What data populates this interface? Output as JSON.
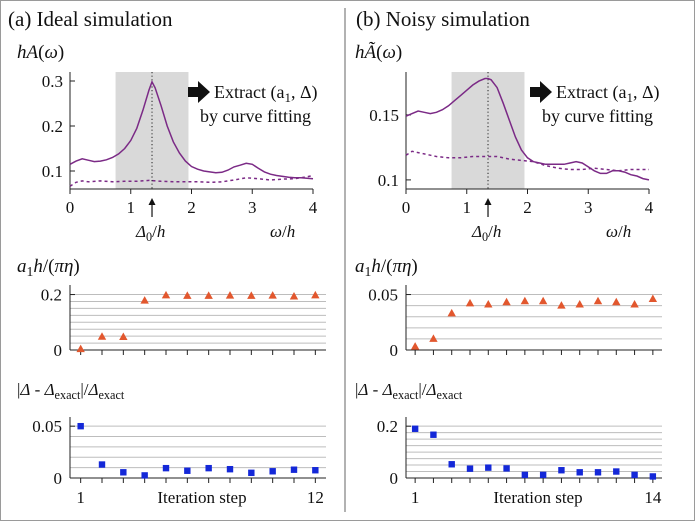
{
  "colors": {
    "curve": "#7b2a86",
    "triangle": "#e2572e",
    "square": "#1428d8",
    "highlight": "#d9d9d9",
    "grid": "#bdbdbd",
    "divider": "#888888"
  },
  "annotation": {
    "extract_line1": "Extract (a",
    "extract_sub": "1",
    "extract_line1_end": ", Δ)",
    "extract_line2": "by curve fitting"
  },
  "chart_data": [
    {
      "id": "a-spectrum",
      "panel_title": "(a) Ideal simulation",
      "type": "line",
      "ylabel": "hA(ω)",
      "xlabel": "ω/h",
      "xtick_label": "Δ0/h",
      "xlim": [
        0,
        4
      ],
      "ylim": [
        0.06,
        0.32
      ],
      "xticks": [
        0,
        1,
        2,
        3,
        4
      ],
      "yticks": [
        0.1,
        0.2,
        0.3
      ],
      "ytick_labels": [
        "0.1",
        "0.2",
        "0.3"
      ],
      "highlight_range": [
        0.75,
        1.95
      ],
      "peak_x": 1.35,
      "series": [
        {
          "style": "solid",
          "x": [
            0,
            0.1,
            0.2,
            0.3,
            0.4,
            0.5,
            0.6,
            0.7,
            0.8,
            0.9,
            1.0,
            1.1,
            1.2,
            1.3,
            1.35,
            1.4,
            1.5,
            1.6,
            1.7,
            1.8,
            1.9,
            2.0,
            2.1,
            2.2,
            2.3,
            2.4,
            2.5,
            2.6,
            2.7,
            2.8,
            2.9,
            3.0,
            3.1,
            3.2,
            3.3,
            3.4,
            3.5,
            3.6,
            3.7,
            3.8,
            3.9,
            4.0
          ],
          "y": [
            0.115,
            0.122,
            0.127,
            0.124,
            0.121,
            0.122,
            0.125,
            0.13,
            0.138,
            0.15,
            0.168,
            0.195,
            0.235,
            0.28,
            0.298,
            0.285,
            0.245,
            0.2,
            0.165,
            0.14,
            0.122,
            0.11,
            0.104,
            0.1,
            0.098,
            0.096,
            0.097,
            0.102,
            0.109,
            0.113,
            0.117,
            0.115,
            0.106,
            0.098,
            0.093,
            0.09,
            0.088,
            0.086,
            0.085,
            0.085,
            0.084,
            0.083
          ]
        },
        {
          "style": "dashed",
          "x": [
            0,
            0.1,
            0.2,
            0.3,
            0.5,
            0.7,
            0.9,
            1.1,
            1.3,
            1.5,
            1.7,
            1.9,
            2.1,
            2.3,
            2.5,
            2.7,
            2.9,
            3.1,
            3.3,
            3.5,
            3.7,
            3.9,
            4.0
          ],
          "y": [
            0.066,
            0.075,
            0.078,
            0.076,
            0.078,
            0.076,
            0.077,
            0.077,
            0.079,
            0.077,
            0.076,
            0.076,
            0.076,
            0.075,
            0.076,
            0.08,
            0.085,
            0.083,
            0.08,
            0.082,
            0.083,
            0.087,
            0.09
          ]
        }
      ]
    },
    {
      "id": "a-a1",
      "type": "scatter",
      "ylabel": "a1h/(πη)",
      "ylim": [
        0,
        0.22
      ],
      "yticks": [
        0,
        0.2
      ],
      "ytick_labels": [
        "0",
        "0.2"
      ],
      "gridlines": [
        0.025,
        0.05,
        0.075,
        0.1,
        0.125,
        0.15,
        0.175,
        0.2
      ],
      "xlim": [
        0.5,
        12.5
      ],
      "marker": "triangle",
      "x": [
        1,
        2,
        3,
        4,
        5,
        6,
        7,
        8,
        9,
        10,
        11,
        12
      ],
      "y": [
        0.003,
        0.048,
        0.047,
        0.178,
        0.197,
        0.195,
        0.195,
        0.196,
        0.195,
        0.196,
        0.193,
        0.197
      ]
    },
    {
      "id": "a-delta",
      "type": "scatter",
      "ylabel": "|Δ - Δexact|/Δexact",
      "xlabel": "Iteration step",
      "ylim": [
        0,
        0.055
      ],
      "yticks": [
        0,
        0.05
      ],
      "ytick_labels": [
        "0",
        "0.05"
      ],
      "gridlines": [
        0.01,
        0.02,
        0.03,
        0.04,
        0.05
      ],
      "xlim": [
        0.5,
        12.5
      ],
      "xtick_values": [
        1,
        12
      ],
      "xtick_labels": [
        "1",
        "12"
      ],
      "marker": "square",
      "x": [
        1,
        2,
        3,
        4,
        5,
        6,
        7,
        8,
        9,
        10,
        11,
        12
      ],
      "y": [
        0.05,
        0.013,
        0.0055,
        0.0025,
        0.0095,
        0.007,
        0.0095,
        0.0085,
        0.005,
        0.0065,
        0.008,
        0.0075
      ]
    },
    {
      "id": "b-spectrum",
      "panel_title": "(b) Noisy simulation",
      "type": "line",
      "ylabel": "hÃ(ω)",
      "xlabel": "ω/h",
      "xtick_label": "Δ0/h",
      "xlim": [
        0,
        4
      ],
      "ylim": [
        0.093,
        0.183
      ],
      "xticks": [
        0,
        1,
        2,
        3,
        4
      ],
      "yticks": [
        0.1,
        0.15
      ],
      "ytick_labels": [
        "0.1",
        "0.15"
      ],
      "highlight_range": [
        0.75,
        1.95
      ],
      "peak_x": 1.35,
      "series": [
        {
          "style": "solid",
          "x": [
            0,
            0.1,
            0.2,
            0.3,
            0.4,
            0.5,
            0.6,
            0.7,
            0.8,
            0.9,
            1.0,
            1.1,
            1.2,
            1.3,
            1.35,
            1.4,
            1.5,
            1.6,
            1.7,
            1.8,
            1.9,
            2.0,
            2.1,
            2.2,
            2.3,
            2.4,
            2.5,
            2.6,
            2.7,
            2.8,
            2.9,
            3.0,
            3.1,
            3.2,
            3.3,
            3.4,
            3.5,
            3.6,
            3.7,
            3.8,
            3.9,
            4.0
          ],
          "y": [
            0.149,
            0.151,
            0.153,
            0.152,
            0.151,
            0.152,
            0.154,
            0.157,
            0.161,
            0.165,
            0.169,
            0.173,
            0.176,
            0.178,
            0.178,
            0.177,
            0.171,
            0.159,
            0.146,
            0.133,
            0.123,
            0.117,
            0.114,
            0.113,
            0.112,
            0.112,
            0.112,
            0.112,
            0.113,
            0.114,
            0.113,
            0.11,
            0.107,
            0.105,
            0.105,
            0.107,
            0.107,
            0.106,
            0.104,
            0.103,
            0.101,
            0.1
          ]
        },
        {
          "style": "dashed",
          "x": [
            0,
            0.1,
            0.2,
            0.3,
            0.5,
            0.7,
            0.9,
            1.1,
            1.3,
            1.5,
            1.7,
            1.9,
            2.1,
            2.3,
            2.5,
            2.7,
            2.9,
            3.1,
            3.3,
            3.5,
            3.7,
            3.9,
            4.0
          ],
          "y": [
            0.119,
            0.122,
            0.121,
            0.12,
            0.118,
            0.117,
            0.117,
            0.118,
            0.118,
            0.118,
            0.116,
            0.115,
            0.114,
            0.111,
            0.109,
            0.108,
            0.108,
            0.109,
            0.108,
            0.107,
            0.108,
            0.108,
            0.108
          ]
        }
      ]
    },
    {
      "id": "b-a1",
      "type": "scatter",
      "ylabel": "a1h/(πη)",
      "ylim": [
        0,
        0.055
      ],
      "yticks": [
        0,
        0.05
      ],
      "ytick_labels": [
        "0",
        "0.05"
      ],
      "gridlines": [
        0.01,
        0.02,
        0.03,
        0.04,
        0.05
      ],
      "xlim": [
        0.5,
        14.5
      ],
      "marker": "triangle",
      "x": [
        1,
        2,
        3,
        4,
        5,
        6,
        7,
        8,
        9,
        10,
        11,
        12,
        13,
        14
      ],
      "y": [
        0.003,
        0.01,
        0.033,
        0.042,
        0.041,
        0.043,
        0.044,
        0.044,
        0.04,
        0.041,
        0.044,
        0.043,
        0.041,
        0.046
      ]
    },
    {
      "id": "b-delta",
      "type": "scatter",
      "ylabel": "|Δ - Δexact|/Δexact",
      "xlabel": "Iteration step",
      "ylim": [
        0,
        0.22
      ],
      "yticks": [
        0,
        0.2
      ],
      "ytick_labels": [
        "0",
        "0.2"
      ],
      "gridlines": [
        0.025,
        0.05,
        0.075,
        0.1,
        0.125,
        0.15,
        0.175,
        0.2
      ],
      "xlim": [
        0.5,
        14.5
      ],
      "xtick_values": [
        1,
        14
      ],
      "xtick_labels": [
        "1",
        "14"
      ],
      "marker": "square",
      "x": [
        1,
        2,
        3,
        4,
        5,
        6,
        7,
        8,
        9,
        10,
        11,
        12,
        13,
        14
      ],
      "y": [
        0.19,
        0.167,
        0.053,
        0.036,
        0.04,
        0.037,
        0.012,
        0.012,
        0.03,
        0.022,
        0.022,
        0.025,
        0.012,
        0.006
      ]
    }
  ]
}
